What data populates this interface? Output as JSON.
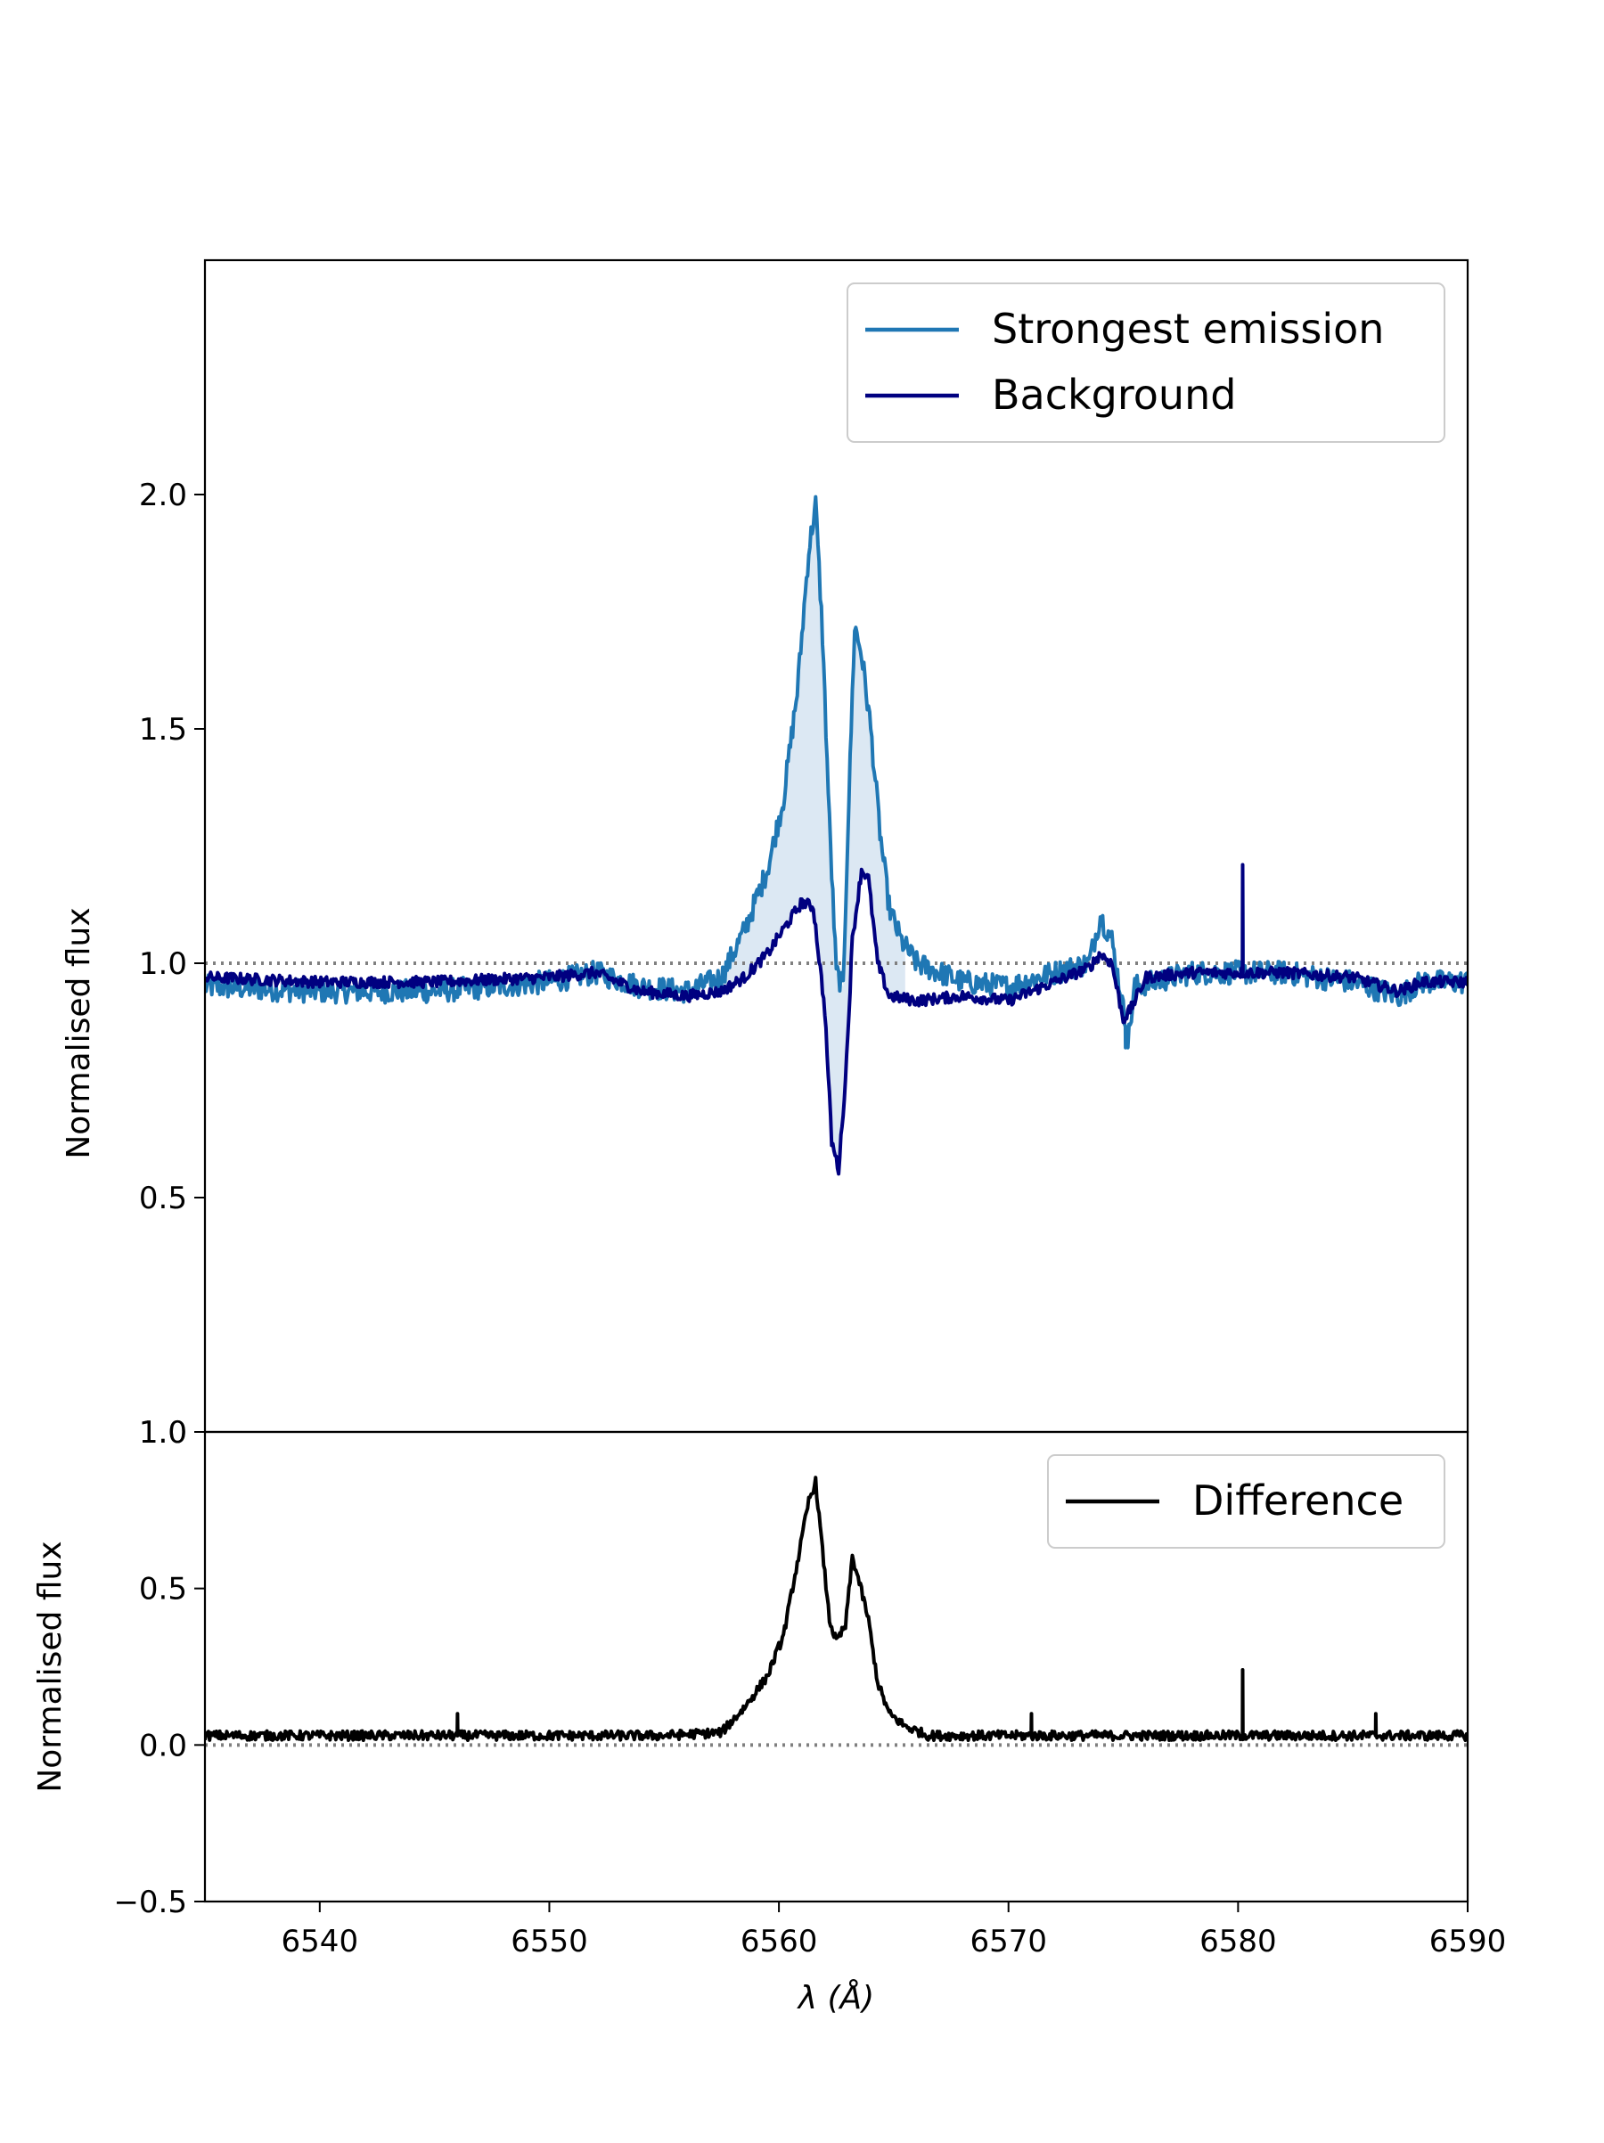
{
  "chart_data": [
    {
      "type": "line",
      "panel": "top",
      "ylabel": "Normalised flux",
      "xlim": [
        6535,
        6590
      ],
      "ylim": [
        0.0,
        2.5
      ],
      "yticks": [
        0.5,
        1.0,
        1.5,
        2.0
      ],
      "ytick_labels": [
        "0.5",
        "1.0",
        "1.5",
        "2.0"
      ],
      "bottom_tick_label": "1.0",
      "reference_line": {
        "y": 1.0,
        "style": "dotted",
        "color": "#808080"
      },
      "legend": {
        "position": "top-right",
        "entries": [
          "Strongest emission",
          "Background"
        ]
      },
      "fill_between": {
        "series": [
          "Strongest emission",
          "Background"
        ],
        "color": "#dce8f3",
        "range": [
          6557.5,
          6565.5
        ]
      },
      "series": [
        {
          "name": "Strongest emission",
          "color": "#1f77b4",
          "noise": 0.025,
          "points": [
            [
              6535,
              0.95
            ],
            [
              6540,
              0.94
            ],
            [
              6545,
              0.94
            ],
            [
              6550,
              0.96
            ],
            [
              6552,
              0.98
            ],
            [
              6554,
              0.95
            ],
            [
              6556,
              0.94
            ],
            [
              6557.5,
              0.97
            ],
            [
              6558.5,
              1.07
            ],
            [
              6559.5,
              1.2
            ],
            [
              6560.2,
              1.35
            ],
            [
              6560.8,
              1.58
            ],
            [
              6561.3,
              1.88
            ],
            [
              6561.6,
              1.98
            ],
            [
              6561.9,
              1.7
            ],
            [
              6562.2,
              1.3
            ],
            [
              6562.5,
              0.98
            ],
            [
              6562.8,
              0.95
            ],
            [
              6563.0,
              1.28
            ],
            [
              6563.3,
              1.72
            ],
            [
              6563.6,
              1.66
            ],
            [
              6564.0,
              1.5
            ],
            [
              6564.4,
              1.28
            ],
            [
              6564.8,
              1.12
            ],
            [
              6565.3,
              1.05
            ],
            [
              6566,
              1.0
            ],
            [
              6567,
              0.98
            ],
            [
              6568,
              0.96
            ],
            [
              6570,
              0.95
            ],
            [
              6572,
              0.98
            ],
            [
              6573.5,
              1.0
            ],
            [
              6574,
              1.1
            ],
            [
              6574.5,
              1.05
            ],
            [
              6575,
              0.9
            ],
            [
              6575.2,
              0.83
            ],
            [
              6575.5,
              0.95
            ],
            [
              6578,
              0.98
            ],
            [
              6580,
              0.98
            ],
            [
              6582,
              0.98
            ],
            [
              6585,
              0.96
            ],
            [
              6587,
              0.93
            ],
            [
              6588,
              0.96
            ],
            [
              6590,
              0.96
            ]
          ],
          "spikes": [
            [
              6575.1,
              0.82
            ],
            [
              6580.2,
              1.2
            ]
          ]
        },
        {
          "name": "Background",
          "color": "#000080",
          "noise": 0.012,
          "points": [
            [
              6535,
              0.97
            ],
            [
              6540,
              0.96
            ],
            [
              6545,
              0.96
            ],
            [
              6550,
              0.97
            ],
            [
              6552,
              0.98
            ],
            [
              6554,
              0.94
            ],
            [
              6556,
              0.93
            ],
            [
              6557.5,
              0.94
            ],
            [
              6558.5,
              0.97
            ],
            [
              6559.5,
              1.02
            ],
            [
              6560.3,
              1.08
            ],
            [
              6561,
              1.13
            ],
            [
              6561.5,
              1.12
            ],
            [
              6562.0,
              0.9
            ],
            [
              6562.3,
              0.62
            ],
            [
              6562.6,
              0.56
            ],
            [
              6562.9,
              0.75
            ],
            [
              6563.2,
              1.05
            ],
            [
              6563.6,
              1.2
            ],
            [
              6563.9,
              1.18
            ],
            [
              6564.3,
              1.0
            ],
            [
              6564.8,
              0.93
            ],
            [
              6566,
              0.92
            ],
            [
              6568,
              0.93
            ],
            [
              6570,
              0.92
            ],
            [
              6572,
              0.96
            ],
            [
              6573.5,
              0.99
            ],
            [
              6574,
              1.02
            ],
            [
              6574.5,
              1.0
            ],
            [
              6575,
              0.88
            ],
            [
              6575.3,
              0.9
            ],
            [
              6576,
              0.97
            ],
            [
              6578,
              0.98
            ],
            [
              6580,
              0.98
            ],
            [
              6582,
              0.98
            ],
            [
              6585,
              0.97
            ],
            [
              6587,
              0.94
            ],
            [
              6588,
              0.96
            ],
            [
              6590,
              0.96
            ]
          ],
          "spikes": [
            [
              6580.2,
              1.21
            ]
          ]
        }
      ]
    },
    {
      "type": "line",
      "panel": "bottom",
      "ylabel": "Normalised flux",
      "xlabel": "λ (Å)",
      "xlim": [
        6535,
        6590
      ],
      "ylim": [
        -0.5,
        1.0
      ],
      "yticks": [
        -0.5,
        0.0,
        0.5,
        1.0
      ],
      "ytick_labels": [
        "−0.5",
        "0.0",
        "0.5",
        "1.0"
      ],
      "xticks": [
        6540,
        6550,
        6560,
        6570,
        6580,
        6590
      ],
      "xtick_labels": [
        "6540",
        "6550",
        "6560",
        "6570",
        "6580",
        "6590"
      ],
      "reference_line": {
        "y": 0.0,
        "style": "dotted",
        "color": "#808080"
      },
      "legend": {
        "position": "top-right",
        "entries": [
          "Difference"
        ]
      },
      "series": [
        {
          "name": "Difference",
          "color": "#000000",
          "noise": 0.015,
          "points": [
            [
              6535,
              0.03
            ],
            [
              6545,
              0.03
            ],
            [
              6555,
              0.03
            ],
            [
              6557.5,
              0.04
            ],
            [
              6558.5,
              0.12
            ],
            [
              6559.5,
              0.22
            ],
            [
              6560.2,
              0.35
            ],
            [
              6560.8,
              0.58
            ],
            [
              6561.3,
              0.78
            ],
            [
              6561.6,
              0.84
            ],
            [
              6561.9,
              0.62
            ],
            [
              6562.2,
              0.4
            ],
            [
              6562.5,
              0.33
            ],
            [
              6562.9,
              0.38
            ],
            [
              6563.2,
              0.6
            ],
            [
              6563.5,
              0.52
            ],
            [
              6563.9,
              0.4
            ],
            [
              6564.3,
              0.2
            ],
            [
              6564.8,
              0.1
            ],
            [
              6565.5,
              0.06
            ],
            [
              6566.5,
              0.03
            ],
            [
              6570,
              0.03
            ],
            [
              6580,
              0.03
            ],
            [
              6590,
              0.03
            ]
          ],
          "spikes": [
            [
              6580.2,
              0.24
            ],
            [
              6546,
              0.1
            ],
            [
              6571,
              0.1
            ],
            [
              6586,
              0.1
            ]
          ]
        }
      ]
    }
  ]
}
